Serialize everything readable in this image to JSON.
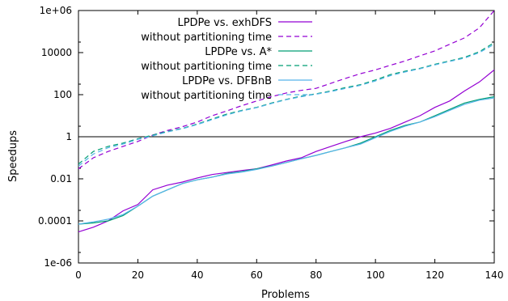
{
  "chart_data": {
    "type": "line",
    "xlabel": "Problems",
    "ylabel": "Speedups",
    "xlim": [
      0,
      140
    ],
    "ylim": [
      1e-06,
      1000000.0
    ],
    "yscale": "log",
    "x_ticks": [
      0,
      20,
      40,
      60,
      80,
      100,
      120,
      140
    ],
    "x_tick_labels": [
      "0",
      "20",
      "40",
      "60",
      "80",
      "100",
      "120",
      "140"
    ],
    "y_ticks": [
      1e-06,
      0.0001,
      0.01,
      1,
      100.0,
      10000.0,
      1000000.0
    ],
    "y_tick_labels": [
      "1e-06",
      "0.0001",
      "0.01",
      "1",
      "100",
      "10000",
      "1e+06"
    ],
    "reference_line_y": 1,
    "legend_position": "top-left",
    "series": [
      {
        "name": "LPDPe vs. exhDFS",
        "color": "#9400d3",
        "dash": "solid",
        "x": [
          0,
          5,
          10,
          15,
          20,
          25,
          30,
          35,
          40,
          45,
          50,
          55,
          60,
          65,
          70,
          75,
          80,
          85,
          90,
          95,
          100,
          105,
          110,
          115,
          120,
          125,
          130,
          135,
          140
        ],
        "y": [
          3e-05,
          5e-05,
          0.0001,
          0.0003,
          0.0006,
          0.003,
          0.005,
          0.007,
          0.011,
          0.016,
          0.02,
          0.025,
          0.03,
          0.045,
          0.07,
          0.1,
          0.2,
          0.35,
          0.6,
          1.0,
          1.5,
          2.5,
          5,
          10,
          25,
          50,
          150,
          400,
          1500
        ]
      },
      {
        "name": "without partitioning time",
        "color": "#9400d3",
        "dash": "dashed",
        "x": [
          0,
          5,
          10,
          15,
          20,
          25,
          30,
          35,
          40,
          45,
          50,
          55,
          60,
          65,
          70,
          75,
          80,
          85,
          90,
          95,
          100,
          105,
          110,
          115,
          120,
          125,
          130,
          135,
          140
        ],
        "y": [
          0.03,
          0.1,
          0.2,
          0.35,
          0.6,
          1.2,
          2,
          3,
          5,
          10,
          17,
          30,
          50,
          80,
          120,
          160,
          200,
          350,
          600,
          1000,
          1500,
          2500,
          4000,
          7000,
          12000,
          25000,
          50000,
          150000,
          1000000
        ]
      },
      {
        "name": "LPDPe vs. A*",
        "color": "#009e73",
        "dash": "solid",
        "x": [
          0,
          5,
          10,
          15,
          20,
          25,
          30,
          35,
          40,
          45,
          50,
          55,
          60,
          65,
          70,
          75,
          80,
          85,
          90,
          95,
          100,
          105,
          110,
          115,
          120,
          125,
          130,
          135,
          140
        ],
        "y": [
          7e-05,
          8e-05,
          0.0001,
          0.00018,
          0.0005,
          0.0015,
          0.003,
          0.006,
          0.009,
          0.012,
          0.018,
          0.022,
          0.03,
          0.04,
          0.06,
          0.09,
          0.13,
          0.2,
          0.3,
          0.5,
          1.0,
          2.0,
          3.5,
          5,
          10,
          20,
          40,
          60,
          80
        ]
      },
      {
        "name": "without partitioning time",
        "color": "#009e73",
        "dash": "dashed",
        "x": [
          0,
          5,
          10,
          15,
          20,
          25,
          30,
          35,
          40,
          45,
          50,
          55,
          60,
          65,
          70,
          75,
          80,
          85,
          90,
          95,
          100,
          105,
          110,
          115,
          120,
          125,
          130,
          135,
          140
        ],
        "y": [
          0.05,
          0.2,
          0.35,
          0.5,
          0.8,
          1.2,
          1.8,
          2.5,
          4,
          7,
          12,
          18,
          25,
          40,
          60,
          85,
          110,
          150,
          220,
          300,
          500,
          900,
          1300,
          1800,
          2800,
          4000,
          6000,
          11000,
          30000
        ]
      },
      {
        "name": "LPDPe vs. DFBnB",
        "color": "#56b4e9",
        "dash": "solid",
        "x": [
          0,
          5,
          10,
          15,
          20,
          25,
          30,
          35,
          40,
          45,
          50,
          55,
          60,
          65,
          70,
          75,
          80,
          85,
          90,
          95,
          100,
          105,
          110,
          115,
          120,
          125,
          130,
          135,
          140
        ],
        "y": [
          7e-05,
          9e-05,
          0.00012,
          0.0002,
          0.0005,
          0.0015,
          0.003,
          0.006,
          0.009,
          0.012,
          0.017,
          0.021,
          0.028,
          0.04,
          0.06,
          0.09,
          0.13,
          0.2,
          0.3,
          0.45,
          0.9,
          1.8,
          3.2,
          5,
          9,
          18,
          35,
          55,
          70
        ]
      },
      {
        "name": "without partitioning time",
        "color": "#56b4e9",
        "dash": "dashed",
        "x": [
          0,
          5,
          10,
          15,
          20,
          25,
          30,
          35,
          40,
          45,
          50,
          55,
          60,
          65,
          70,
          75,
          80,
          85,
          90,
          95,
          100,
          105,
          110,
          115,
          120,
          125,
          130,
          135,
          140
        ],
        "y": [
          0.04,
          0.15,
          0.3,
          0.45,
          0.75,
          1.1,
          1.7,
          2.4,
          3.8,
          6.5,
          11,
          17,
          24,
          38,
          58,
          80,
          105,
          140,
          200,
          280,
          450,
          800,
          1200,
          1700,
          2600,
          3800,
          5500,
          10000,
          25000
        ]
      }
    ]
  }
}
